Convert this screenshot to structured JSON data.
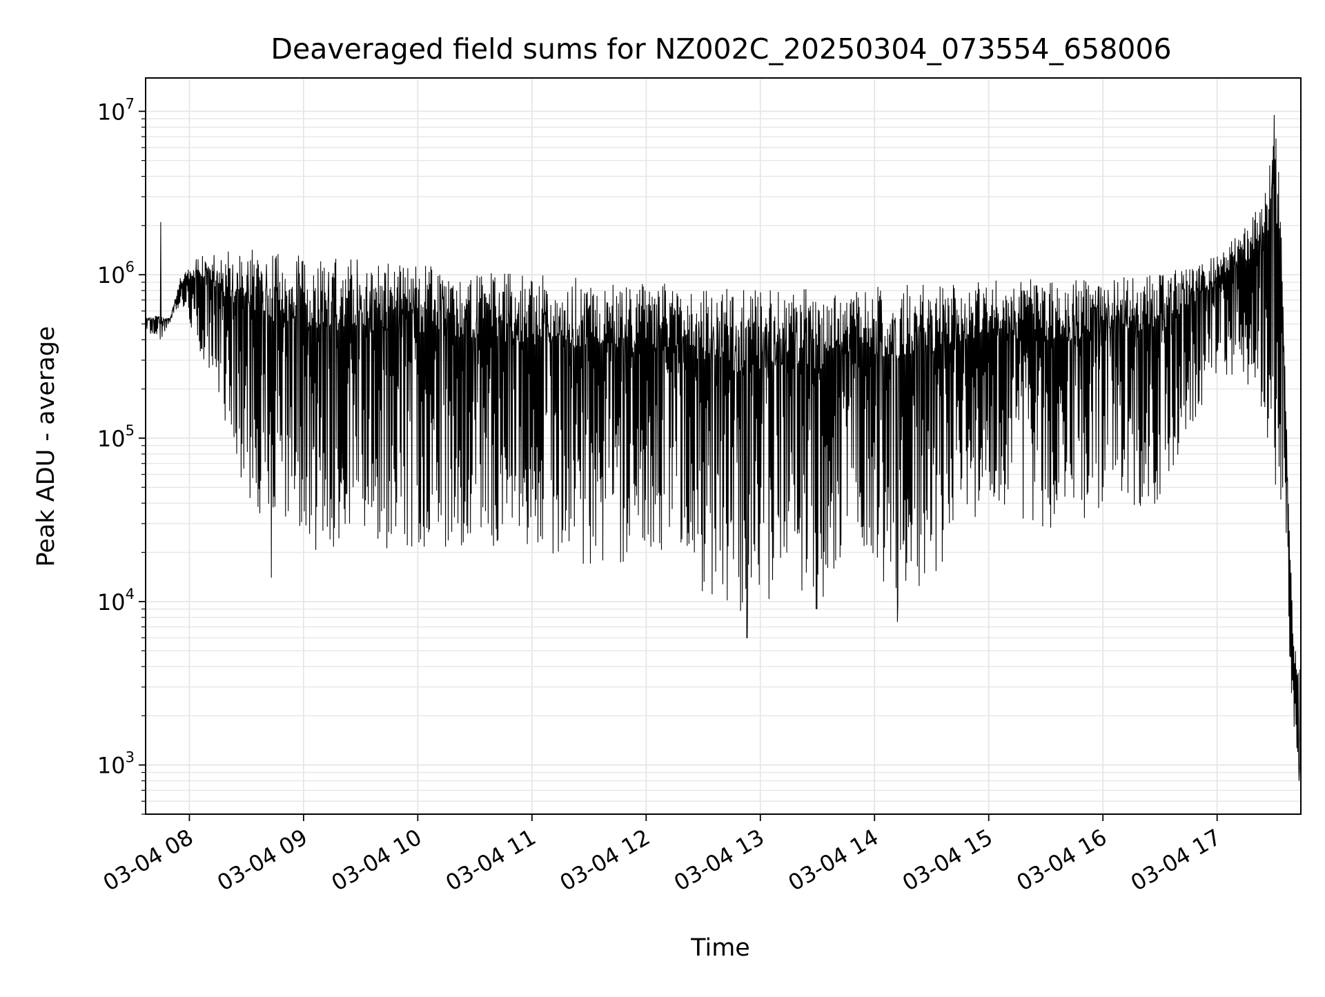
{
  "chart_data": {
    "type": "line",
    "title": "Deaveraged field sums for NZ002C_20250304_073554_658006",
    "xlabel": "Time",
    "ylabel": "Peak ADU - average",
    "xlim": [
      "03-04 07:37",
      "03-04 17:44"
    ],
    "ylim": [
      500,
      16000000
    ],
    "yscale": "log",
    "grid": true,
    "grid_color": "#e6e6e6",
    "line_color": "#000000",
    "x_tick_labels": [
      "03-04 08",
      "03-04 09",
      "03-04 10",
      "03-04 11",
      "03-04 12",
      "03-04 13",
      "03-04 14",
      "03-04 15",
      "03-04 16",
      "03-04 17"
    ],
    "y_tick_labels": [
      {
        "base": "10",
        "exp": "3"
      },
      {
        "base": "10",
        "exp": "4"
      },
      {
        "base": "10",
        "exp": "5"
      },
      {
        "base": "10",
        "exp": "6"
      },
      {
        "base": "10",
        "exp": "7"
      }
    ],
    "series": [
      {
        "upper_envelope": [
          [
            "03-04 07:37",
            550000
          ],
          [
            "03-04 07:42",
            560000
          ],
          [
            "03-04 07:50",
            550000
          ],
          [
            "03-04 07:55",
            950000
          ],
          [
            "03-04 08:05",
            1300000
          ],
          [
            "03-04 08:30",
            1450000
          ],
          [
            "03-04 09:00",
            1300000
          ],
          [
            "03-04 09:30",
            1250000
          ],
          [
            "03-04 10:00",
            1150000
          ],
          [
            "03-04 10:30",
            1050000
          ],
          [
            "03-04 11:00",
            1000000
          ],
          [
            "03-04 11:30",
            950000
          ],
          [
            "03-04 12:00",
            900000
          ],
          [
            "03-04 12:30",
            850000
          ],
          [
            "03-04 13:00",
            800000
          ],
          [
            "03-04 13:30",
            820000
          ],
          [
            "03-04 14:00",
            850000
          ],
          [
            "03-04 14:30",
            880000
          ],
          [
            "03-04 15:00",
            920000
          ],
          [
            "03-04 15:30",
            950000
          ],
          [
            "03-04 16:00",
            950000
          ],
          [
            "03-04 16:30",
            1000000
          ],
          [
            "03-04 17:00",
            1300000
          ],
          [
            "03-04 17:15",
            2000000
          ],
          [
            "03-04 17:25",
            3000000
          ],
          [
            "03-04 17:30",
            9500000
          ],
          [
            "03-04 17:33",
            4000000
          ],
          [
            "03-04 17:37",
            80000
          ],
          [
            "03-04 17:40",
            6000
          ],
          [
            "03-04 17:44",
            4000
          ]
        ],
        "lower_envelope": [
          [
            "03-04 07:37",
            450000
          ],
          [
            "03-04 07:45",
            400000
          ],
          [
            "03-04 07:55",
            650000
          ],
          [
            "03-04 08:10",
            250000
          ],
          [
            "03-04 08:20",
            100000
          ],
          [
            "03-04 08:30",
            40000
          ],
          [
            "03-04 08:45",
            25000
          ],
          [
            "03-04 09:00",
            20000
          ],
          [
            "03-04 09:30",
            22000
          ],
          [
            "03-04 10:00",
            20000
          ],
          [
            "03-04 10:30",
            22000
          ],
          [
            "03-04 11:00",
            20000
          ],
          [
            "03-04 11:30",
            16000
          ],
          [
            "03-04 12:00",
            17000
          ],
          [
            "03-04 12:30",
            11000
          ],
          [
            "03-04 12:50",
            7000
          ],
          [
            "03-04 13:10",
            10000
          ],
          [
            "03-04 13:30",
            8000
          ],
          [
            "03-04 13:50",
            25000
          ],
          [
            "03-04 14:10",
            9000
          ],
          [
            "03-04 14:30",
            14000
          ],
          [
            "03-04 15:00",
            40000
          ],
          [
            "03-04 15:30",
            25000
          ],
          [
            "03-04 16:00",
            35000
          ],
          [
            "03-04 16:30",
            40000
          ],
          [
            "03-04 17:00",
            250000
          ],
          [
            "03-04 17:20",
            200000
          ],
          [
            "03-04 17:35",
            30000
          ],
          [
            "03-04 17:40",
            1500
          ],
          [
            "03-04 17:44",
            800
          ]
        ],
        "extremes": [
          {
            "x": "03-04 07:45",
            "y": 2100000
          },
          {
            "x": "03-04 08:43",
            "y": 14000
          },
          {
            "x": "03-04 12:53",
            "y": 6000
          },
          {
            "x": "03-04 14:12",
            "y": 7500
          },
          {
            "x": "03-04 17:30",
            "y": 9500000
          },
          {
            "x": "03-04 17:43",
            "y": 800
          }
        ]
      }
    ]
  }
}
